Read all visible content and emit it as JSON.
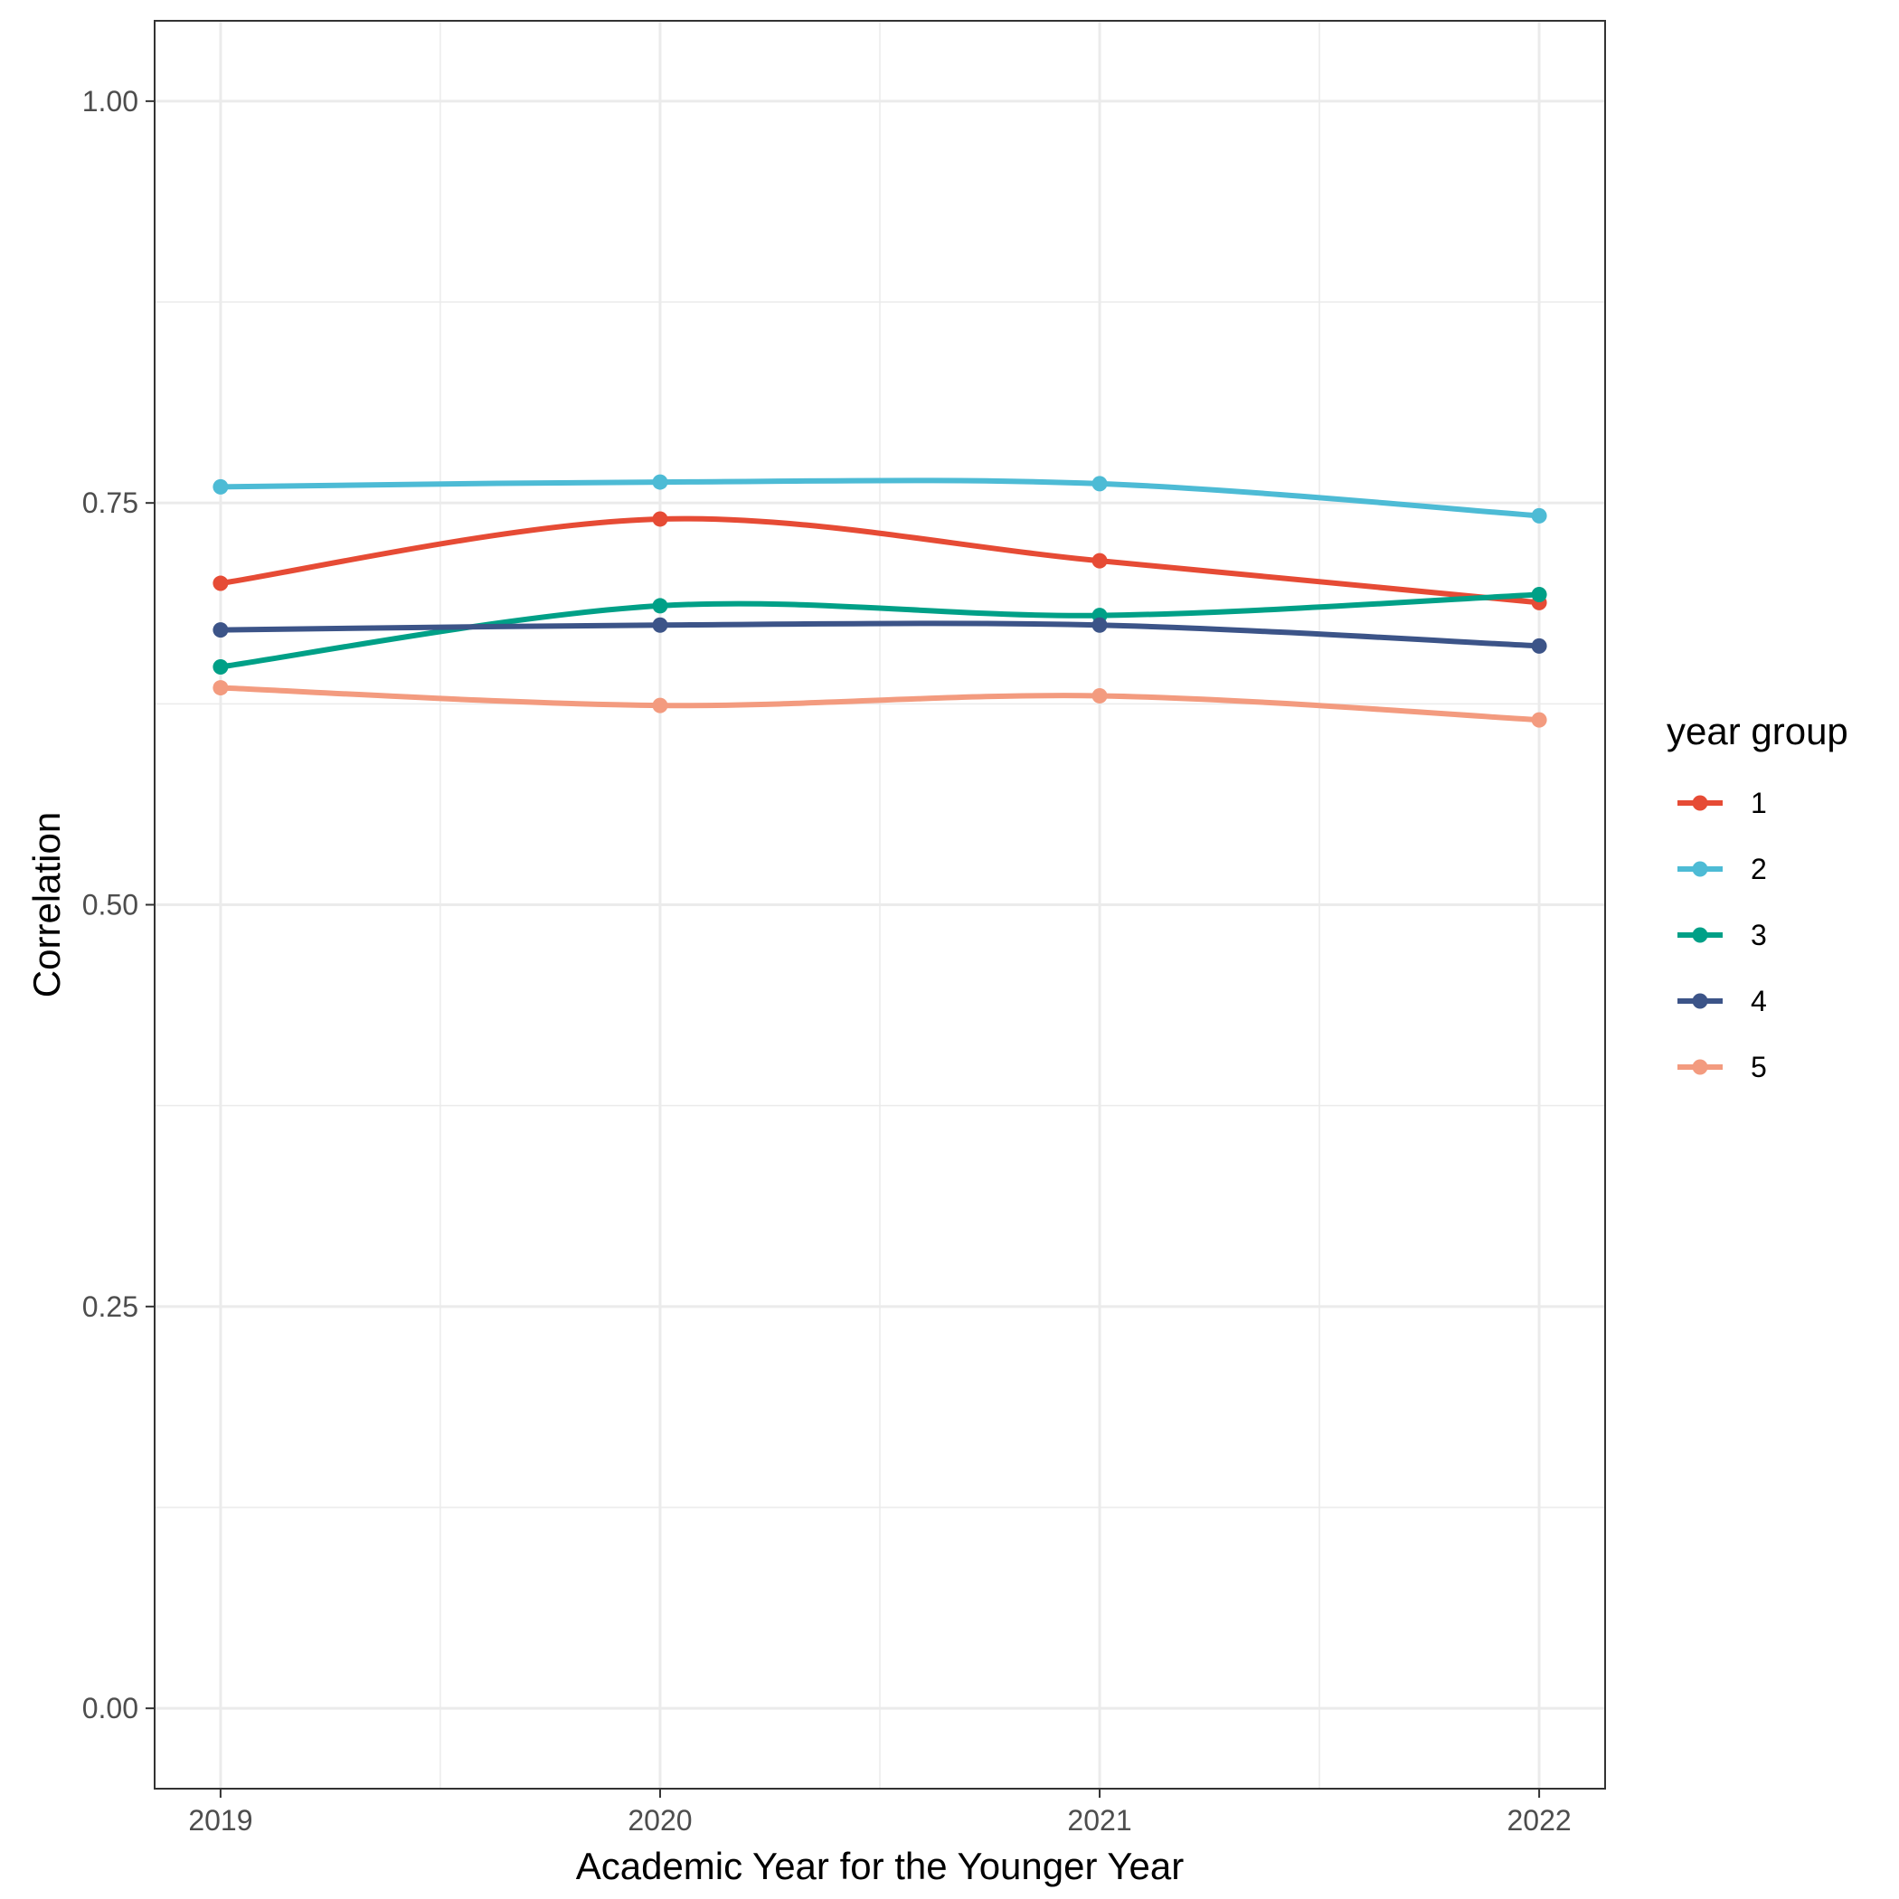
{
  "chart_data": {
    "type": "line",
    "title": "",
    "xlabel": "Academic Year for the Younger Year",
    "ylabel": "Correlation",
    "x": [
      2019,
      2020,
      2021,
      2022
    ],
    "x_tick_labels": [
      "2019",
      "2020",
      "2021",
      "2022"
    ],
    "xlim": [
      2018.85,
      2022.15
    ],
    "ylim": [
      -0.05,
      1.05
    ],
    "y_ticks": [
      0.0,
      0.25,
      0.5,
      0.75,
      1.0
    ],
    "y_tick_labels": [
      "0.00",
      "0.25",
      "0.50",
      "0.75",
      "1.00"
    ],
    "grid": true,
    "smoothed": true,
    "legend": {
      "title": "year group",
      "position": "right"
    },
    "series": [
      {
        "name": "1",
        "color": "#E64B35",
        "values": [
          0.7,
          0.74,
          0.714,
          0.688
        ]
      },
      {
        "name": "2",
        "color": "#4DBBD5",
        "values": [
          0.76,
          0.763,
          0.762,
          0.742
        ]
      },
      {
        "name": "3",
        "color": "#00A087",
        "values": [
          0.648,
          0.686,
          0.68,
          0.693
        ]
      },
      {
        "name": "4",
        "color": "#3C5488",
        "values": [
          0.671,
          0.674,
          0.674,
          0.661
        ]
      },
      {
        "name": "5",
        "color": "#F39B7F",
        "values": [
          0.635,
          0.624,
          0.63,
          0.615
        ]
      }
    ]
  }
}
